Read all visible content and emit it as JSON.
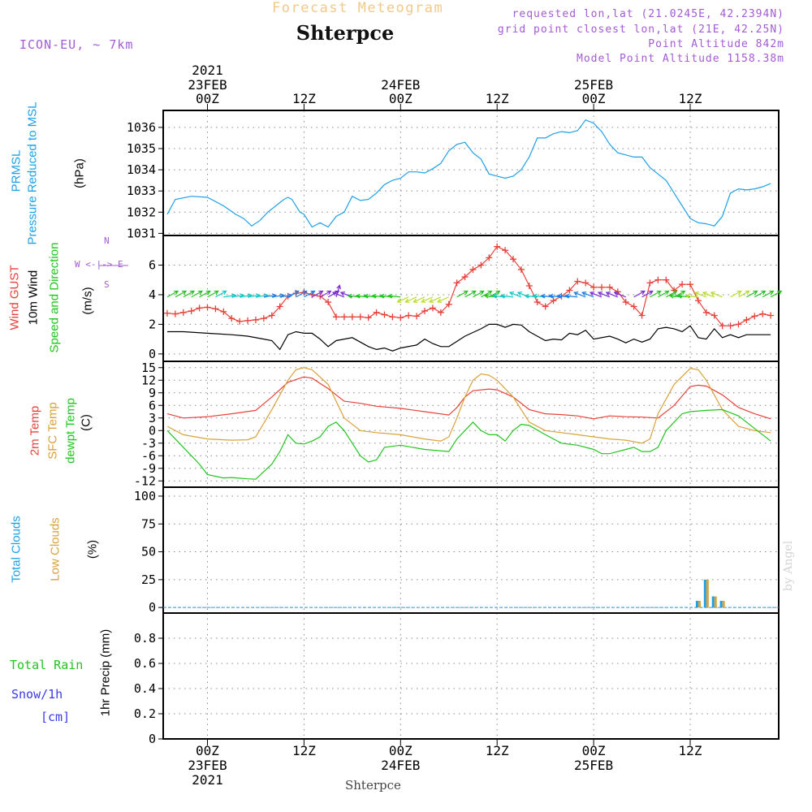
{
  "header": {
    "subtitle": "Forecast Meteogram",
    "location": "Shterpce",
    "model": "ICON-EU, ~ 7km",
    "requested": "requested lon,lat (21.0245E, 42.2394N)",
    "grid_point": "grid point closest lon,lat (21E, 42.25N)",
    "point_altitude": "Point Altitude 842m",
    "model_altitude": "Model Point Altitude 1158.38m"
  },
  "time_axis": {
    "ticks": [
      {
        "hour": 0,
        "label": "00Z",
        "date": "23FEB",
        "year": "2021"
      },
      {
        "hour": 12,
        "label": "12Z",
        "date": "",
        "year": ""
      },
      {
        "hour": 24,
        "label": "00Z",
        "date": "24FEB",
        "year": ""
      },
      {
        "hour": 36,
        "label": "12Z",
        "date": "",
        "year": ""
      },
      {
        "hour": 48,
        "label": "00Z",
        "date": "25FEB",
        "year": ""
      },
      {
        "hour": 60,
        "label": "12Z",
        "date": "",
        "year": ""
      }
    ],
    "xlim": [
      -5.5,
      71
    ]
  },
  "footer_location": "Shterpce",
  "credit": "by Angel",
  "panel_labels": {
    "pressure": {
      "name": "PRMSL",
      "long": "Pressure Reduced to MSL",
      "unit": "(hPa)"
    },
    "wind": {
      "gust": "Wind GUST",
      "wind10": "10m Wind",
      "dir": "Speed and Direction",
      "unit": "(m/s)",
      "compass_we": "W <-|-> E",
      "compass_n": "N",
      "compass_s": "S"
    },
    "temp": {
      "t2m": "2m Temp",
      "sfc": "SFC Temp",
      "dew": "dewpt Temp",
      "unit": "(C)"
    },
    "cloud": {
      "total": "Total Clouds",
      "low": "Low Clouds",
      "unit": "(%)"
    },
    "precip": {
      "rain": "Total  Rain",
      "snow": "Snow/1h",
      "snow_unit": "[cm]",
      "label": "1hr Precip (mm)"
    }
  },
  "colors": {
    "pressure": "#1ea0e6",
    "gust": "#e8413a",
    "wind10": "#000000",
    "t2m": "#e8413a",
    "sfc": "#d9a23a",
    "dew": "#22c41f",
    "total_clouds": "#1ea0e6",
    "low_clouds": "#d9a23a",
    "rain": "#22c41f",
    "snow": "#3a3ae6",
    "compass": "#a45bd6"
  },
  "chart_data": [
    {
      "type": "line",
      "title": "PRMSL Pressure Reduced to MSL",
      "ylabel": "(hPa)",
      "ylim": [
        1030.9,
        1036.8
      ],
      "yticks": [
        1031,
        1032,
        1033,
        1034,
        1035,
        1036
      ],
      "grid": true,
      "series": [
        {
          "name": "PRMSL",
          "color": "#1ea0e6",
          "x": [
            -5,
            -4,
            -2,
            0,
            2,
            3.5,
            4.5,
            5.5,
            6.5,
            7.5,
            9.5,
            10,
            10.5,
            11.5,
            12,
            13,
            14,
            15,
            16,
            17,
            18,
            19,
            20,
            21,
            22,
            23,
            24,
            25,
            26,
            27,
            28,
            29,
            30,
            31,
            32,
            33,
            34,
            35,
            36,
            37,
            38,
            39,
            40,
            41,
            42,
            43,
            44,
            45,
            46,
            47,
            48,
            49,
            50,
            51,
            52,
            53,
            54,
            55,
            56,
            57,
            58,
            59,
            60,
            61,
            62,
            63,
            64,
            65,
            66,
            67,
            68,
            69,
            70
          ],
          "y": [
            1031.9,
            1032.6,
            1032.75,
            1032.7,
            1032.3,
            1031.9,
            1031.7,
            1031.35,
            1031.6,
            1032.0,
            1032.6,
            1032.7,
            1032.6,
            1032.0,
            1031.9,
            1031.3,
            1031.5,
            1031.3,
            1031.8,
            1032.0,
            1032.75,
            1032.55,
            1032.6,
            1032.9,
            1033.3,
            1033.5,
            1033.6,
            1033.9,
            1033.9,
            1033.85,
            1034.05,
            1034.3,
            1034.9,
            1035.2,
            1035.3,
            1034.8,
            1034.5,
            1033.8,
            1033.7,
            1033.6,
            1033.7,
            1034.0,
            1034.6,
            1035.5,
            1035.5,
            1035.7,
            1035.8,
            1035.75,
            1035.85,
            1036.35,
            1036.2,
            1035.8,
            1035.2,
            1034.8,
            1034.7,
            1034.6,
            1034.6,
            1034.1,
            1033.8,
            1033.5,
            1032.9,
            1032.3,
            1031.7,
            1031.5,
            1031.45,
            1031.35,
            1031.8,
            1032.9,
            1033.1,
            1033.05,
            1033.1,
            1033.2,
            1033.35
          ]
        }
      ]
    },
    {
      "type": "line",
      "title": "Wind GUST / 10m Wind Speed and Direction",
      "ylabel": "(m/s)",
      "ylim": [
        -0.5,
        8
      ],
      "yticks": [
        0,
        2,
        4,
        6
      ],
      "grid": true,
      "series": [
        {
          "name": "Wind GUST",
          "color": "#e8413a",
          "marker": "+",
          "x": [
            -5,
            -4,
            -3,
            -2,
            -1,
            0,
            1,
            2,
            3,
            4,
            5,
            6,
            7,
            8,
            9,
            10,
            11,
            12,
            13,
            14,
            15,
            16,
            17,
            18,
            19,
            20,
            21,
            22,
            23,
            24,
            25,
            26,
            27,
            28,
            29,
            30,
            31,
            32,
            33,
            34,
            35,
            36,
            37,
            38,
            39,
            40,
            41,
            42,
            43,
            44,
            45,
            46,
            47,
            48,
            49,
            50,
            51,
            52,
            53,
            54,
            55,
            56,
            57,
            58,
            59,
            60,
            61,
            62,
            63,
            64,
            65,
            66,
            67,
            68,
            69,
            70
          ],
          "y": [
            2.75,
            2.7,
            2.8,
            2.9,
            3.1,
            3.15,
            3.05,
            2.85,
            2.4,
            2.2,
            2.25,
            2.3,
            2.4,
            2.6,
            3.2,
            3.9,
            4.1,
            4.15,
            4.0,
            3.9,
            3.5,
            2.5,
            2.5,
            2.5,
            2.5,
            2.45,
            2.8,
            2.65,
            2.5,
            2.45,
            2.6,
            2.55,
            2.9,
            3.1,
            2.8,
            3.35,
            4.8,
            5.2,
            5.7,
            6.0,
            6.5,
            7.25,
            7.0,
            6.4,
            5.7,
            4.6,
            3.5,
            3.2,
            3.6,
            3.9,
            4.3,
            4.9,
            4.8,
            4.5,
            4.5,
            4.5,
            4.2,
            3.5,
            3.2,
            2.6,
            4.8,
            5.0,
            5.0,
            4.3,
            4.7,
            4.7,
            3.6,
            2.8,
            2.6,
            1.9,
            1.9,
            2.0,
            2.3,
            2.55,
            2.7,
            2.6
          ]
        },
        {
          "name": "10m Wind",
          "color": "#000000",
          "x": [
            -5,
            -3,
            0,
            3,
            5,
            7,
            8,
            9,
            10,
            11,
            12,
            13,
            14,
            15,
            16,
            18,
            20,
            21,
            22,
            23,
            24,
            26,
            27,
            28,
            29,
            30,
            32,
            34,
            35,
            36,
            37,
            38,
            39,
            40,
            41,
            42,
            43,
            44,
            45,
            46,
            47,
            48,
            50,
            51,
            52,
            53,
            54,
            55,
            56,
            57,
            58,
            59,
            60,
            61,
            62,
            63,
            64,
            65,
            66,
            67,
            68,
            69,
            70
          ],
          "y": [
            1.5,
            1.5,
            1.4,
            1.3,
            1.2,
            1.0,
            0.9,
            0.3,
            1.3,
            1.5,
            1.4,
            1.4,
            1.0,
            0.5,
            0.9,
            1.1,
            0.5,
            0.3,
            0.4,
            0.2,
            0.4,
            0.6,
            1.0,
            0.7,
            0.5,
            0.5,
            1.2,
            1.7,
            2.0,
            2.0,
            1.8,
            2.0,
            1.95,
            1.5,
            1.2,
            0.9,
            1.0,
            0.95,
            1.4,
            1.3,
            1.6,
            1.0,
            1.2,
            1.0,
            0.75,
            1.0,
            0.8,
            1.0,
            1.7,
            1.8,
            1.7,
            1.5,
            1.9,
            1.1,
            1.0,
            1.7,
            1.1,
            1.3,
            1.1,
            1.3,
            1.3,
            1.3,
            1.3
          ]
        }
      ],
      "wind_arrows_hours": [
        -5,
        -4,
        -3,
        -2,
        -1,
        0,
        1,
        2,
        3,
        4,
        5,
        6,
        7,
        8,
        9,
        10,
        11,
        12,
        13,
        14,
        15,
        16,
        17,
        18,
        19,
        20,
        21,
        22,
        23,
        24,
        25,
        26,
        27,
        28,
        29,
        30,
        31,
        32,
        33,
        34,
        35,
        36,
        37,
        38,
        39,
        40,
        41,
        42,
        43,
        44,
        45,
        46,
        47,
        48,
        49,
        50,
        51,
        52,
        53,
        54,
        55,
        56,
        57,
        58,
        59,
        60,
        61,
        62,
        63,
        64,
        65,
        66,
        67,
        68,
        69,
        70
      ],
      "wind_arrows_dir": [
        "ne",
        "ne",
        "ne",
        "ne",
        "ne",
        "ne",
        "ne",
        "e",
        "e",
        "e",
        "e",
        "e",
        "e",
        "e",
        "e",
        "ne",
        "ne",
        "ne",
        "ne",
        "ne",
        "ne",
        "n",
        "nw",
        "nw",
        "w",
        "w",
        "w",
        "w",
        "w",
        "w",
        "sw",
        "sw",
        "sw",
        "sw",
        "sw",
        "sw",
        "ne",
        "ne",
        "ne",
        "ne",
        "ne",
        "w",
        "w",
        "w",
        "nw",
        "nw",
        "w",
        "w",
        "w",
        "w",
        "w",
        "w",
        "nw",
        "nw",
        "nw",
        "nw",
        "nw",
        "nw",
        "ne",
        "ne",
        "ne",
        "ne",
        "ne",
        "ne",
        "w",
        "w",
        "w",
        "nw",
        "nw",
        "nw",
        "ne",
        "ne",
        "ne",
        "ne",
        "ne",
        "ne"
      ]
    },
    {
      "type": "line",
      "title": "2m Temp / SFC Temp / dewpt Temp",
      "ylabel": "(C)",
      "ylim": [
        -13.5,
        16.5
      ],
      "yticks": [
        15,
        12,
        9,
        6,
        3,
        0,
        -3,
        -6,
        -9,
        -12
      ],
      "grid": true,
      "series": [
        {
          "name": "2m Temp",
          "color": "#e8413a",
          "x": [
            -5,
            -3,
            0,
            3,
            6,
            8,
            10,
            12,
            13,
            15,
            17,
            19,
            21,
            24,
            27,
            30,
            31,
            32,
            33,
            35,
            36,
            38,
            40,
            42,
            44,
            46,
            48,
            50,
            52,
            54,
            56,
            58,
            60,
            61,
            62,
            64,
            66,
            68,
            70
          ],
          "y": [
            4.0,
            3.0,
            3.3,
            4.0,
            4.8,
            8.0,
            11.5,
            12.8,
            12.5,
            10.0,
            7.0,
            6.5,
            5.8,
            5.3,
            4.5,
            3.7,
            5.5,
            8.0,
            9.5,
            9.9,
            9.7,
            8.0,
            5.0,
            4.0,
            3.8,
            3.5,
            2.8,
            3.5,
            3.3,
            3.2,
            3.0,
            6.0,
            10.5,
            10.8,
            10.6,
            8.5,
            5.5,
            4.0,
            2.8
          ]
        },
        {
          "name": "SFC Temp",
          "color": "#d9a23a",
          "x": [
            -5,
            -3,
            0,
            3,
            5,
            6,
            8,
            10,
            11,
            12,
            13,
            15,
            17,
            19,
            21,
            24,
            27,
            29,
            30,
            31,
            32,
            33,
            34,
            35,
            36,
            38,
            40,
            42,
            44,
            46,
            48,
            50,
            52,
            54,
            55,
            56,
            58,
            60,
            61,
            62,
            64,
            66,
            68,
            70
          ],
          "y": [
            1.0,
            -1.0,
            -2.0,
            -2.3,
            -2.2,
            -1.5,
            5.0,
            12.0,
            14.5,
            15.0,
            14.5,
            11.0,
            3.0,
            0.0,
            -0.5,
            -1.0,
            -2.0,
            -2.5,
            -1.5,
            3.0,
            8.0,
            12.0,
            13.5,
            13.2,
            12.0,
            8.0,
            2.0,
            0.0,
            -0.5,
            -1.0,
            -1.5,
            -2.0,
            -2.3,
            -3.0,
            -2.0,
            4.0,
            11.0,
            14.8,
            14.5,
            12.0,
            5.0,
            1.0,
            0.0,
            -0.5
          ]
        },
        {
          "name": "dewpt Temp",
          "color": "#22c41f",
          "x": [
            -5,
            -3,
            -1,
            0,
            2,
            3,
            5,
            6,
            8,
            9,
            10,
            11,
            12,
            13,
            14,
            15,
            16,
            17,
            18,
            19,
            20,
            21,
            22,
            24,
            27,
            30,
            31,
            32,
            33,
            34,
            35,
            36,
            37,
            38,
            39,
            40,
            42,
            44,
            46,
            48,
            49,
            50,
            51,
            52,
            53,
            54,
            55,
            56,
            57,
            58,
            59,
            60,
            62,
            64,
            66,
            68,
            70
          ],
          "y": [
            0.0,
            -4.0,
            -8.0,
            -10.5,
            -11.3,
            -11.2,
            -11.5,
            -11.6,
            -8.0,
            -5.0,
            -1.0,
            -3.0,
            -3.2,
            -2.5,
            -1.5,
            1.0,
            2.0,
            0.0,
            -3.0,
            -6.0,
            -7.5,
            -7.0,
            -4.0,
            -3.5,
            -4.5,
            -5.0,
            -2.0,
            0.0,
            2.0,
            0.0,
            -1.0,
            -1.0,
            -2.5,
            0.0,
            1.5,
            1.2,
            -1.0,
            -3.0,
            -3.5,
            -4.5,
            -5.5,
            -5.5,
            -5.0,
            -4.5,
            -4.0,
            -5.0,
            -5.0,
            -4.0,
            0.0,
            2.0,
            4.0,
            4.5,
            4.8,
            5.0,
            3.5,
            0.5,
            -2.5
          ]
        }
      ]
    },
    {
      "type": "bar",
      "title": "Total Clouds / Low Clouds",
      "ylabel": "(%)",
      "ylim": [
        -5,
        108
      ],
      "yticks": [
        0,
        25,
        50,
        75,
        100
      ],
      "grid": true,
      "series": [
        {
          "name": "Total Clouds",
          "color": "#1ea0e6",
          "x": [
            61,
            62,
            63,
            64
          ],
          "values": [
            6,
            25,
            10,
            6
          ]
        },
        {
          "name": "Low Clouds",
          "color": "#d9a23a",
          "x": [
            61,
            62,
            63,
            64
          ],
          "values": [
            6,
            25,
            10,
            6
          ]
        }
      ]
    },
    {
      "type": "bar",
      "title": "Total Rain / Snow/1h",
      "ylabel": "1hr Precip (mm)",
      "ylim": [
        0,
        1.0
      ],
      "yticks": [
        0,
        0.2,
        0.4,
        0.6,
        0.8
      ],
      "ytick_labels": [
        "0",
        "0.2",
        "0.4",
        "0.6",
        "0.8"
      ],
      "grid": true,
      "series": [
        {
          "name": "Total Rain",
          "color": "#22c41f",
          "values": []
        },
        {
          "name": "Snow/1h",
          "color": "#3a3ae6",
          "values": []
        }
      ]
    }
  ]
}
